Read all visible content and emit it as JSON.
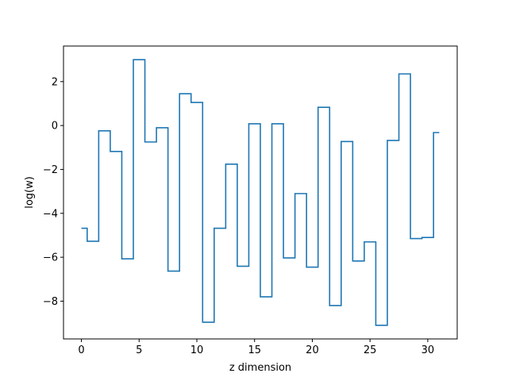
{
  "chart_data": {
    "type": "line",
    "drawstyle": "steps-mid",
    "xlabel": "z dimension",
    "ylabel": "log(w)",
    "xlim": [
      -1.55,
      32.55
    ],
    "ylim": [
      -9.72,
      3.62
    ],
    "xticks": [
      0,
      5,
      10,
      15,
      20,
      25,
      30
    ],
    "yticks": [
      -8,
      -6,
      -4,
      -2,
      0,
      2
    ],
    "grid": false,
    "legend": false,
    "colors": {
      "line": "#1f77b4",
      "axes": "#000000",
      "background": "#ffffff"
    },
    "series": [
      {
        "x": [
          0,
          1,
          2,
          3,
          4,
          5,
          6,
          7,
          8,
          9,
          10,
          11,
          12,
          13,
          14,
          15,
          16,
          17,
          18,
          19,
          20,
          21,
          22,
          23,
          24,
          25,
          26,
          27,
          28,
          29,
          30,
          31
        ],
        "values": [
          -4.68,
          -5.27,
          -0.24,
          -1.18,
          -6.07,
          3.0,
          -0.75,
          -0.1,
          -6.63,
          1.45,
          1.05,
          -8.96,
          -4.68,
          -1.76,
          -6.41,
          0.08,
          -7.8,
          0.08,
          -6.03,
          -3.1,
          -6.45,
          0.83,
          -8.2,
          -0.73,
          -6.17,
          -5.3,
          -9.1,
          -0.68,
          2.35,
          -5.15,
          -5.1,
          -0.32
        ]
      }
    ]
  }
}
